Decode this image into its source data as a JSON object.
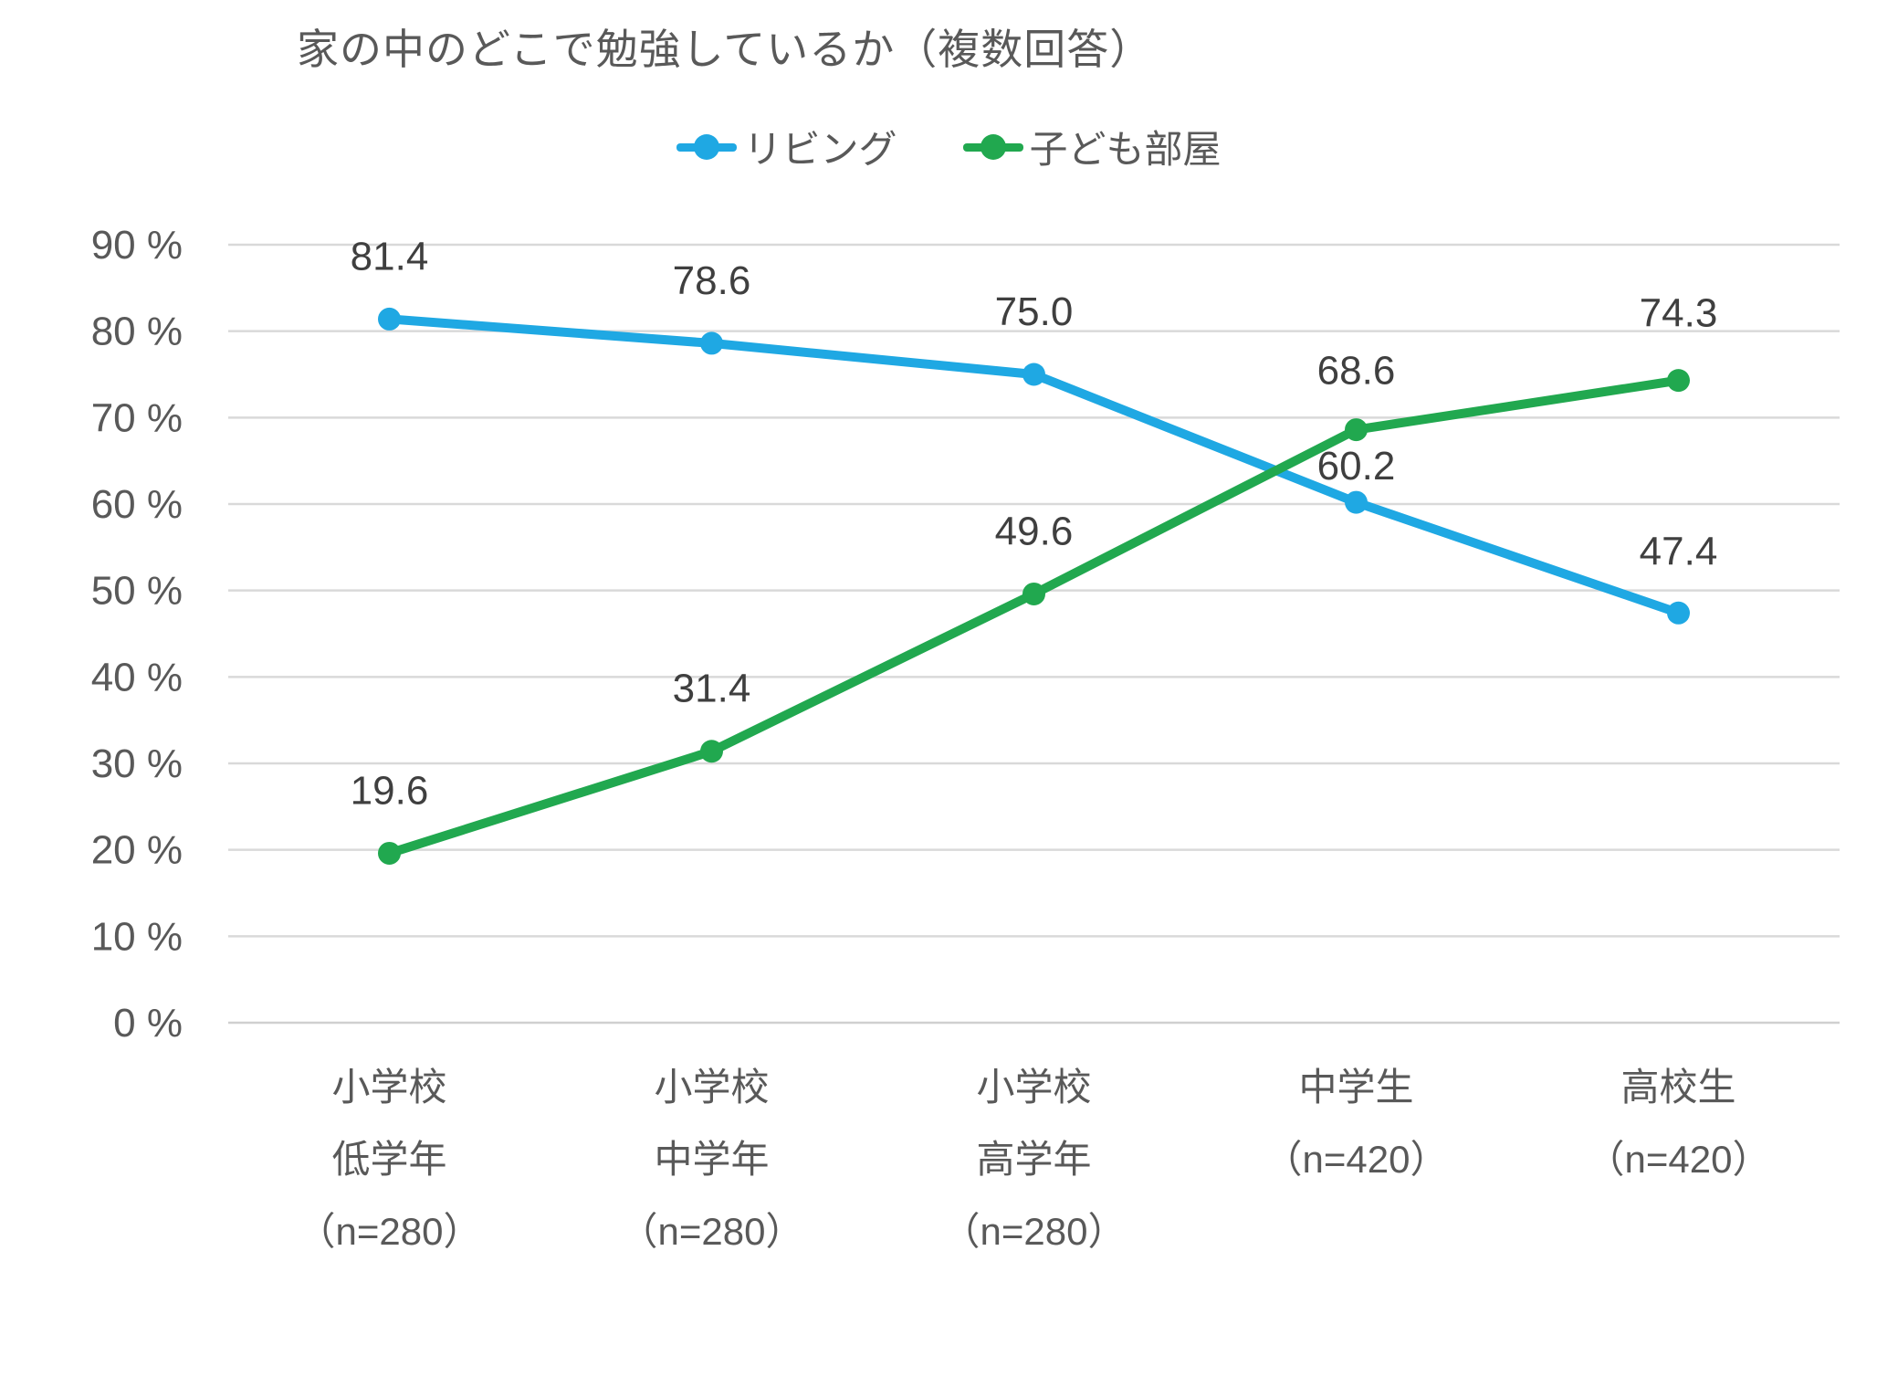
{
  "chart_data": {
    "type": "line",
    "title": "家の中のどこで勉強しているか（複数回答）",
    "categories": [
      [
        "小学校",
        "低学年",
        "（n=280）"
      ],
      [
        "小学校",
        "中学年",
        "（n=280）"
      ],
      [
        "小学校",
        "高学年",
        "（n=280）"
      ],
      [
        "中学生",
        "（n=420）"
      ],
      [
        "高校生",
        "（n=420）"
      ]
    ],
    "series": [
      {
        "name": "リビング",
        "color": "#1FA8E3",
        "values": [
          81.4,
          78.6,
          75.0,
          60.2,
          47.4
        ],
        "label_dy": [
          54,
          54,
          54,
          25,
          53
        ]
      },
      {
        "name": "子ども部屋",
        "color": "#21A84F",
        "values": [
          19.6,
          31.4,
          49.6,
          68.6,
          74.3
        ],
        "label_dy": [
          54,
          54,
          54,
          50,
          59
        ]
      }
    ],
    "y_axis": {
      "min": 0,
      "max": 90,
      "step": 10,
      "tick_suffix": " %",
      "tick_labels": [
        "0 %",
        "10 %",
        "20 %",
        "30 %",
        "40 %",
        "50 %",
        "60 %",
        "70 %",
        "80 %",
        "90 %"
      ]
    },
    "ylim": [
      0,
      90
    ],
    "grid": true,
    "legend_position": "top",
    "data_labels": true,
    "data_label_decimals": 1
  },
  "colors": {
    "series_living": "#1FA8E3",
    "series_kids_room": "#21A84F",
    "grid": "#D9D9D9",
    "axis_line": "#D0D0D0",
    "title_text": "#595959",
    "axis_text": "#595959",
    "data_label_text": "#3F3F3F"
  }
}
